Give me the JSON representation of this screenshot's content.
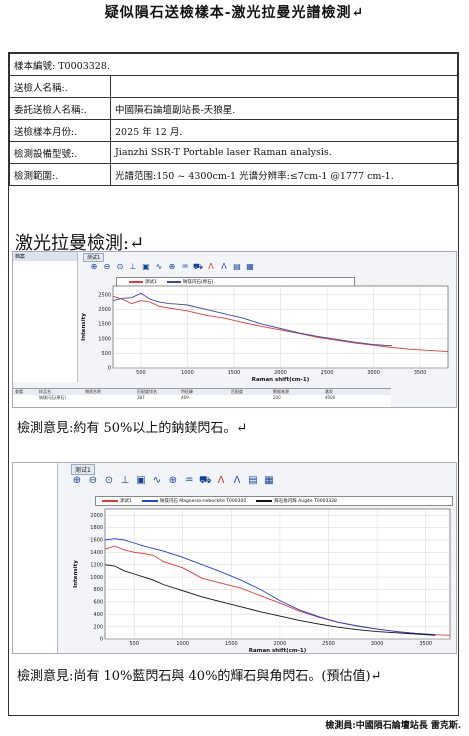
{
  "title": "疑似隕石送檢樣本-激光拉曼光譜檢測↵",
  "info": [
    {
      "label": "樣本編號: T0003328.",
      "value": ""
    },
    {
      "label": "送檢人名稱:.",
      "value": ""
    },
    {
      "label": "委託送檢人名稱:.",
      "value": "中國隕石論壇副站長-夭狼星."
    },
    {
      "label": "送檢樣本月份:.",
      "value": "2025 年 12 月."
    },
    {
      "label": "檢測設備型號:.",
      "value": "Jianzhi SSR-T Portable laser Raman analysis."
    },
    {
      "label": "檢測範圍:.",
      "value": "光譜范围:150 ~ 4300cm-1 光谱分辨率:≤7cm-1 @1777 cm-1."
    }
  ],
  "section_title": "激光拉曼檢測:↵",
  "opinion1": "檢測意見:約有 50%以上的鈉鎂閃石。↵",
  "opinion2": "檢測意見:尚有 10%藍閃石與 40%的輝石與角閃石。(預估值)↵",
  "footer": "檢測員:中國隕石論壇站長 雷克斯.",
  "shot1": {
    "panel_label": "档案",
    "tab_label": "测试1",
    "legend": [
      {
        "name": "测试1",
        "color": "#e53935"
      },
      {
        "name": "钠镁闪石(原石)",
        "color": "#3949ab"
      }
    ],
    "bottom_headers": [
      "查看",
      "样品名",
      "物质名称",
      "匹配度排名",
      "特征峰",
      "匹配度",
      "数据来源",
      "激发"
    ],
    "bottom_values": [
      "",
      "钠镁闪石(原石)",
      "",
      "387",
      "469",
      "",
      "200",
      "4000"
    ]
  },
  "shot2": {
    "tab_label": "测试1",
    "legend": [
      {
        "name": "测试1",
        "color": "#e53935"
      },
      {
        "name": "钠镁闪石 Magnesio-riebeckite T000300",
        "color": "#1e40e0"
      },
      {
        "name": "辉石角闪辉 Augite T0003328",
        "color": "#111111"
      }
    ]
  },
  "chart_data": [
    {
      "type": "line",
      "xlabel": "Raman shift(cm-1)",
      "ylabel": "Intensity",
      "xlim": [
        200,
        3800
      ],
      "ylim": [
        0,
        2800
      ],
      "x_ticks": [
        500,
        1000,
        1500,
        2000,
        2500,
        3000,
        3500
      ],
      "y_ticks": [
        0,
        500,
        1000,
        1500,
        2000,
        2500
      ],
      "grid": true,
      "legend_position": "top",
      "series": [
        {
          "name": "测试1",
          "color": "#e53935",
          "x": [
            200,
            300,
            400,
            500,
            600,
            700,
            800,
            900,
            1000,
            1200,
            1400,
            1600,
            1800,
            2000,
            2200,
            2400,
            2600,
            2800,
            3000,
            3200,
            3400,
            3600,
            3800
          ],
          "y": [
            2450,
            2350,
            2200,
            2300,
            2250,
            2100,
            2050,
            2000,
            1950,
            1800,
            1700,
            1550,
            1420,
            1300,
            1180,
            1050,
            950,
            850,
            780,
            700,
            640,
            600,
            560
          ]
        },
        {
          "name": "钠镁闪石(原石)",
          "color": "#3949ab",
          "x": [
            200,
            300,
            400,
            500,
            600,
            700,
            800,
            900,
            1000,
            1200,
            1400,
            1600,
            1800,
            2000,
            2200,
            2400,
            2600,
            2800,
            3000,
            3200
          ],
          "y": [
            2300,
            2380,
            2400,
            2550,
            2350,
            2250,
            2200,
            2180,
            2150,
            2000,
            1850,
            1700,
            1500,
            1350,
            1200,
            1080,
            980,
            880,
            800,
            760
          ]
        }
      ]
    },
    {
      "type": "line",
      "xlabel": "Raman shift(cm-1)",
      "ylabel": "Intensity",
      "xlim": [
        200,
        3750
      ],
      "ylim": [
        0,
        2100
      ],
      "x_ticks": [
        500,
        1000,
        1500,
        2000,
        2500,
        3000,
        3500
      ],
      "y_ticks": [
        0,
        200,
        400,
        600,
        800,
        1000,
        1200,
        1400,
        1600,
        1800,
        2000
      ],
      "grid": true,
      "legend_position": "top",
      "series": [
        {
          "name": "测试1",
          "color": "#e53935",
          "x": [
            200,
            300,
            400,
            500,
            600,
            700,
            800,
            1000,
            1200,
            1400,
            1600,
            1800,
            2000,
            2200,
            2400,
            2600,
            2800,
            3000,
            3200,
            3400,
            3600,
            3750
          ],
          "y": [
            1450,
            1500,
            1440,
            1400,
            1380,
            1350,
            1250,
            1150,
            980,
            900,
            820,
            700,
            580,
            450,
            350,
            270,
            210,
            160,
            120,
            90,
            70,
            60
          ]
        },
        {
          "name": "钠镁闪石 Magnesio-riebeckite T000300",
          "color": "#1e40e0",
          "x": [
            200,
            300,
            400,
            500,
            600,
            700,
            800,
            1000,
            1200,
            1400,
            1600,
            1800,
            2000,
            2200,
            2400,
            2600,
            2800,
            3000,
            3200,
            3400,
            3600
          ],
          "y": [
            1600,
            1620,
            1600,
            1550,
            1500,
            1460,
            1420,
            1320,
            1200,
            1080,
            950,
            800,
            620,
            470,
            360,
            270,
            210,
            160,
            120,
            90,
            70
          ]
        },
        {
          "name": "辉石角闪辉 Augite T0003328",
          "color": "#111111",
          "x": [
            200,
            300,
            400,
            500,
            600,
            700,
            800,
            1000,
            1200,
            1400,
            1600,
            1800,
            2000,
            2200,
            2400,
            2600,
            2800,
            3000,
            3200,
            3400,
            3600
          ],
          "y": [
            1200,
            1180,
            1100,
            1050,
            1000,
            950,
            880,
            780,
            680,
            600,
            520,
            440,
            370,
            300,
            240,
            190,
            150,
            120,
            100,
            80,
            60
          ]
        }
      ]
    }
  ]
}
